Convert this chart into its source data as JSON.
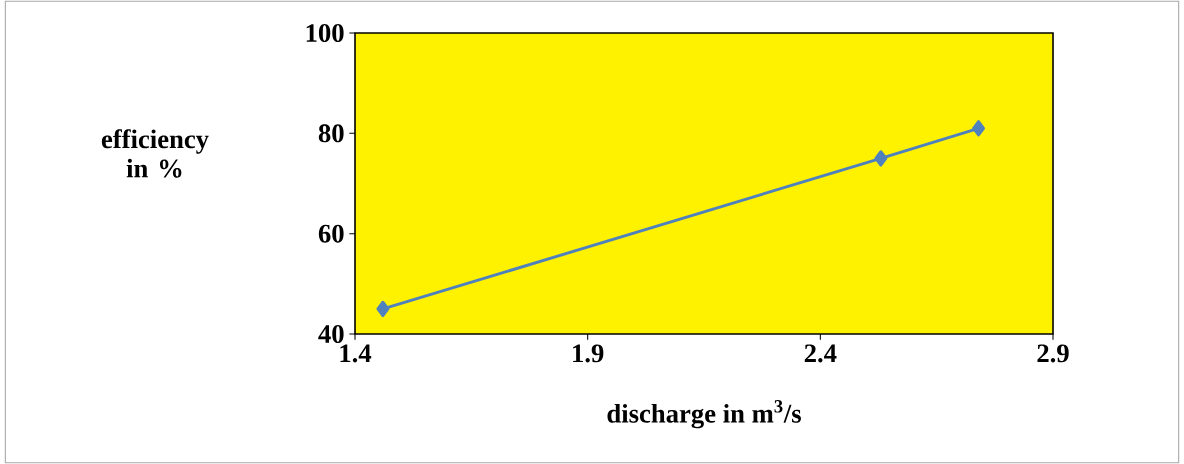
{
  "chart_data": {
    "type": "line",
    "xlabel": "discharge in m$^{3}$/s",
    "ylabel": "efficiency in %",
    "x": [
      1.46,
      2.53,
      2.74
    ],
    "series": [
      {
        "color": "#4f81bd",
        "values": [
          45,
          75,
          81
        ]
      }
    ],
    "xlim": [
      1.4,
      2.9
    ],
    "xticks": [
      1.4,
      1.9,
      2.4,
      2.9
    ],
    "ylim": [
      40,
      100
    ],
    "yticks": [
      40,
      60,
      80,
      100
    ],
    "grid": false,
    "marker": "diamond",
    "line_style": "solid"
  }
}
